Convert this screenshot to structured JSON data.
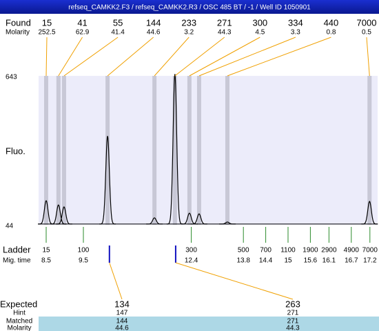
{
  "title": "refseq_CAMKK2.F3 / refseq_CAMKK2.R3 / OSC 485 BT / -1 / Well ID 1050901",
  "found": {
    "label": "Found",
    "sublabel": "Molarity",
    "sizes": [
      15,
      41,
      55,
      144,
      233,
      271,
      300,
      334,
      440,
      7000
    ],
    "molarity": [
      252.5,
      62.9,
      41.4,
      44.6,
      3.2,
      44.3,
      4.5,
      3.3,
      0.8,
      0.5
    ]
  },
  "plot": {
    "y_label": "Fluo.",
    "ylim": [
      44,
      643
    ],
    "yticks": [
      44,
      643
    ],
    "baseline": 47,
    "peaks": [
      {
        "time": 8.5,
        "height": 141
      },
      {
        "time": 8.83,
        "height": 124
      },
      {
        "time": 8.98,
        "height": 116
      },
      {
        "time": 10.15,
        "height": 401
      },
      {
        "time": 11.41,
        "height": 72
      },
      {
        "time": 11.96,
        "height": 650
      },
      {
        "time": 12.35,
        "height": 91
      },
      {
        "time": 12.61,
        "height": 88
      },
      {
        "time": 13.37,
        "height": 55
      },
      {
        "time": 17.19,
        "height": 138
      }
    ]
  },
  "ladder": {
    "label": "Ladder",
    "sublabel": "Mig. time",
    "sizes": [
      15,
      100,
      300,
      500,
      700,
      1100,
      1900,
      2900,
      4900,
      7000
    ],
    "mig_times": [
      8.5,
      9.5,
      12.4,
      13.8,
      14.4,
      15,
      15.6,
      16.1,
      16.7,
      17.2
    ]
  },
  "expected": {
    "label": "Expected",
    "hint_label": "Hint",
    "matched_label": "Matched",
    "molarity_label": "Molarity",
    "sizes": [
      134,
      263
    ],
    "times": [
      10.2,
      11.98
    ],
    "hint": [
      147,
      271
    ],
    "matched": [
      144,
      271
    ],
    "molarity": [
      44.6,
      44.3
    ]
  }
}
